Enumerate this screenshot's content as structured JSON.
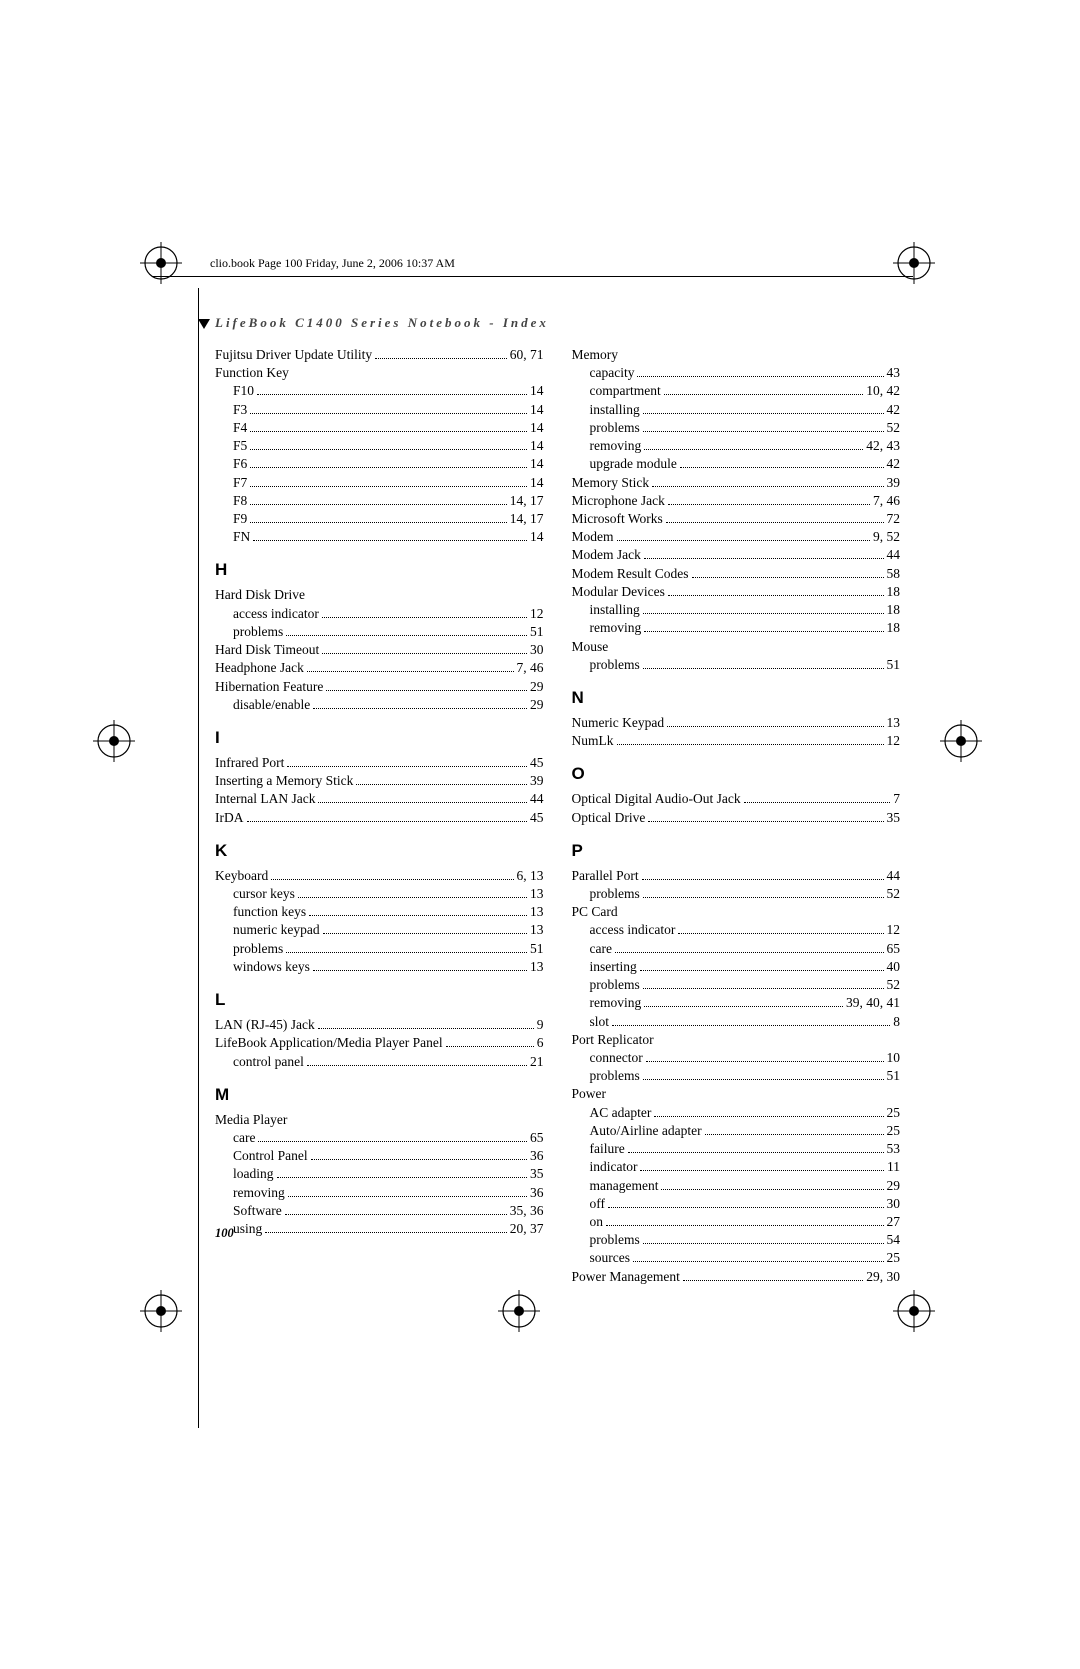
{
  "meta": {
    "header": "clio.book  Page 100  Friday, June 2, 2006  10:37 AM",
    "section_title": "LifeBook C1400 Series Notebook - Index",
    "page_number": "100"
  },
  "col1": [
    {
      "type": "entry",
      "term": "Fujitsu Driver Update Utility",
      "pages": "60, 71"
    },
    {
      "type": "entry",
      "term": "Function Key",
      "nopages": true
    },
    {
      "type": "entry",
      "term": "F10",
      "pages": "14",
      "sub": true
    },
    {
      "type": "entry",
      "term": "F3",
      "pages": "14",
      "sub": true
    },
    {
      "type": "entry",
      "term": "F4",
      "pages": "14",
      "sub": true
    },
    {
      "type": "entry",
      "term": "F5",
      "pages": "14",
      "sub": true
    },
    {
      "type": "entry",
      "term": "F6",
      "pages": "14",
      "sub": true
    },
    {
      "type": "entry",
      "term": "F7",
      "pages": "14",
      "sub": true
    },
    {
      "type": "entry",
      "term": "F8",
      "pages": "14, 17",
      "sub": true
    },
    {
      "type": "entry",
      "term": "F9",
      "pages": "14, 17",
      "sub": true
    },
    {
      "type": "entry",
      "term": "FN",
      "pages": "14",
      "sub": true
    },
    {
      "type": "letter",
      "text": "H"
    },
    {
      "type": "entry",
      "term": "Hard Disk Drive",
      "nopages": true
    },
    {
      "type": "entry",
      "term": "access indicator",
      "pages": "12",
      "sub": true
    },
    {
      "type": "entry",
      "term": "problems",
      "pages": "51",
      "sub": true
    },
    {
      "type": "entry",
      "term": "Hard Disk Timeout",
      "pages": "30"
    },
    {
      "type": "entry",
      "term": "Headphone Jack",
      "pages": "7, 46"
    },
    {
      "type": "entry",
      "term": "Hibernation Feature",
      "pages": "29"
    },
    {
      "type": "entry",
      "term": "disable/enable",
      "pages": "29",
      "sub": true
    },
    {
      "type": "letter",
      "text": "I"
    },
    {
      "type": "entry",
      "term": "Infrared Port",
      "pages": "45"
    },
    {
      "type": "entry",
      "term": "Inserting a Memory Stick",
      "pages": "39"
    },
    {
      "type": "entry",
      "term": "Internal LAN Jack",
      "pages": "44"
    },
    {
      "type": "entry",
      "term": "IrDA",
      "pages": "45"
    },
    {
      "type": "letter",
      "text": "K"
    },
    {
      "type": "entry",
      "term": "Keyboard",
      "pages": "6, 13"
    },
    {
      "type": "entry",
      "term": "cursor keys",
      "pages": "13",
      "sub": true
    },
    {
      "type": "entry",
      "term": "function keys",
      "pages": "13",
      "sub": true
    },
    {
      "type": "entry",
      "term": "numeric keypad",
      "pages": "13",
      "sub": true
    },
    {
      "type": "entry",
      "term": "problems",
      "pages": "51",
      "sub": true
    },
    {
      "type": "entry",
      "term": "windows keys",
      "pages": "13",
      "sub": true
    },
    {
      "type": "letter",
      "text": "L"
    },
    {
      "type": "entry",
      "term": "LAN (RJ-45) Jack",
      "pages": "9"
    },
    {
      "type": "entry",
      "term": "LifeBook Application/Media Player Panel",
      "pages": "6"
    },
    {
      "type": "entry",
      "term": "control panel",
      "pages": "21",
      "sub": true
    },
    {
      "type": "letter",
      "text": "M"
    },
    {
      "type": "entry",
      "term": "Media Player",
      "nopages": true
    },
    {
      "type": "entry",
      "term": "care",
      "pages": "65",
      "sub": true
    },
    {
      "type": "entry",
      "term": "Control Panel",
      "pages": "36",
      "sub": true
    },
    {
      "type": "entry",
      "term": "loading",
      "pages": "35",
      "sub": true
    },
    {
      "type": "entry",
      "term": "removing",
      "pages": "36",
      "sub": true
    },
    {
      "type": "entry",
      "term": "Software",
      "pages": "35, 36",
      "sub": true
    },
    {
      "type": "entry",
      "term": "using",
      "pages": "20, 37",
      "sub": true
    }
  ],
  "col2": [
    {
      "type": "entry",
      "term": "Memory",
      "nopages": true
    },
    {
      "type": "entry",
      "term": "capacity",
      "pages": "43",
      "sub": true
    },
    {
      "type": "entry",
      "term": "compartment",
      "pages": "10, 42",
      "sub": true
    },
    {
      "type": "entry",
      "term": "installing",
      "pages": "42",
      "sub": true
    },
    {
      "type": "entry",
      "term": "problems",
      "pages": "52",
      "sub": true
    },
    {
      "type": "entry",
      "term": "removing",
      "pages": "42, 43",
      "sub": true
    },
    {
      "type": "entry",
      "term": "upgrade module",
      "pages": "42",
      "sub": true
    },
    {
      "type": "entry",
      "term": "Memory Stick",
      "pages": "39"
    },
    {
      "type": "entry",
      "term": "Microphone Jack",
      "pages": "7, 46"
    },
    {
      "type": "entry",
      "term": "Microsoft Works",
      "pages": "72"
    },
    {
      "type": "entry",
      "term": "Modem",
      "pages": "9, 52"
    },
    {
      "type": "entry",
      "term": "Modem Jack",
      "pages": "44"
    },
    {
      "type": "entry",
      "term": "Modem Result Codes",
      "pages": "58"
    },
    {
      "type": "entry",
      "term": "Modular Devices",
      "pages": "18"
    },
    {
      "type": "entry",
      "term": "installing",
      "pages": "18",
      "sub": true
    },
    {
      "type": "entry",
      "term": "removing",
      "pages": "18",
      "sub": true
    },
    {
      "type": "entry",
      "term": "Mouse",
      "nopages": true
    },
    {
      "type": "entry",
      "term": "problems",
      "pages": "51",
      "sub": true
    },
    {
      "type": "letter",
      "text": "N"
    },
    {
      "type": "entry",
      "term": "Numeric Keypad",
      "pages": "13"
    },
    {
      "type": "entry",
      "term": "NumLk",
      "pages": "12"
    },
    {
      "type": "letter",
      "text": "O"
    },
    {
      "type": "entry",
      "term": "Optical Digital Audio-Out Jack",
      "pages": "7"
    },
    {
      "type": "entry",
      "term": "Optical Drive",
      "pages": "35"
    },
    {
      "type": "letter",
      "text": "P"
    },
    {
      "type": "entry",
      "term": "Parallel Port",
      "pages": "44"
    },
    {
      "type": "entry",
      "term": "problems",
      "pages": "52",
      "sub": true
    },
    {
      "type": "entry",
      "term": "PC Card",
      "nopages": true
    },
    {
      "type": "entry",
      "term": "access indicator",
      "pages": "12",
      "sub": true
    },
    {
      "type": "entry",
      "term": "care",
      "pages": "65",
      "sub": true
    },
    {
      "type": "entry",
      "term": "inserting",
      "pages": "40",
      "sub": true
    },
    {
      "type": "entry",
      "term": "problems",
      "pages": "52",
      "sub": true
    },
    {
      "type": "entry",
      "term": "removing",
      "pages": "39, 40, 41",
      "sub": true
    },
    {
      "type": "entry",
      "term": "slot",
      "pages": "8",
      "sub": true
    },
    {
      "type": "entry",
      "term": "Port Replicator",
      "nopages": true
    },
    {
      "type": "entry",
      "term": "connector",
      "pages": "10",
      "sub": true
    },
    {
      "type": "entry",
      "term": "problems",
      "pages": "51",
      "sub": true
    },
    {
      "type": "entry",
      "term": "Power",
      "nopages": true
    },
    {
      "type": "entry",
      "term": "AC adapter",
      "pages": "25",
      "sub": true
    },
    {
      "type": "entry",
      "term": "Auto/Airline adapter",
      "pages": "25",
      "sub": true
    },
    {
      "type": "entry",
      "term": "failure",
      "pages": "53",
      "sub": true
    },
    {
      "type": "entry",
      "term": "indicator",
      "pages": "11",
      "sub": true
    },
    {
      "type": "entry",
      "term": "management",
      "pages": "29",
      "sub": true
    },
    {
      "type": "entry",
      "term": "off",
      "pages": "30",
      "sub": true
    },
    {
      "type": "entry",
      "term": "on",
      "pages": "27",
      "sub": true
    },
    {
      "type": "entry",
      "term": "problems",
      "pages": "54",
      "sub": true
    },
    {
      "type": "entry",
      "term": "sources",
      "pages": "25",
      "sub": true
    },
    {
      "type": "entry",
      "term": "Power Management",
      "pages": "29, 30"
    }
  ]
}
